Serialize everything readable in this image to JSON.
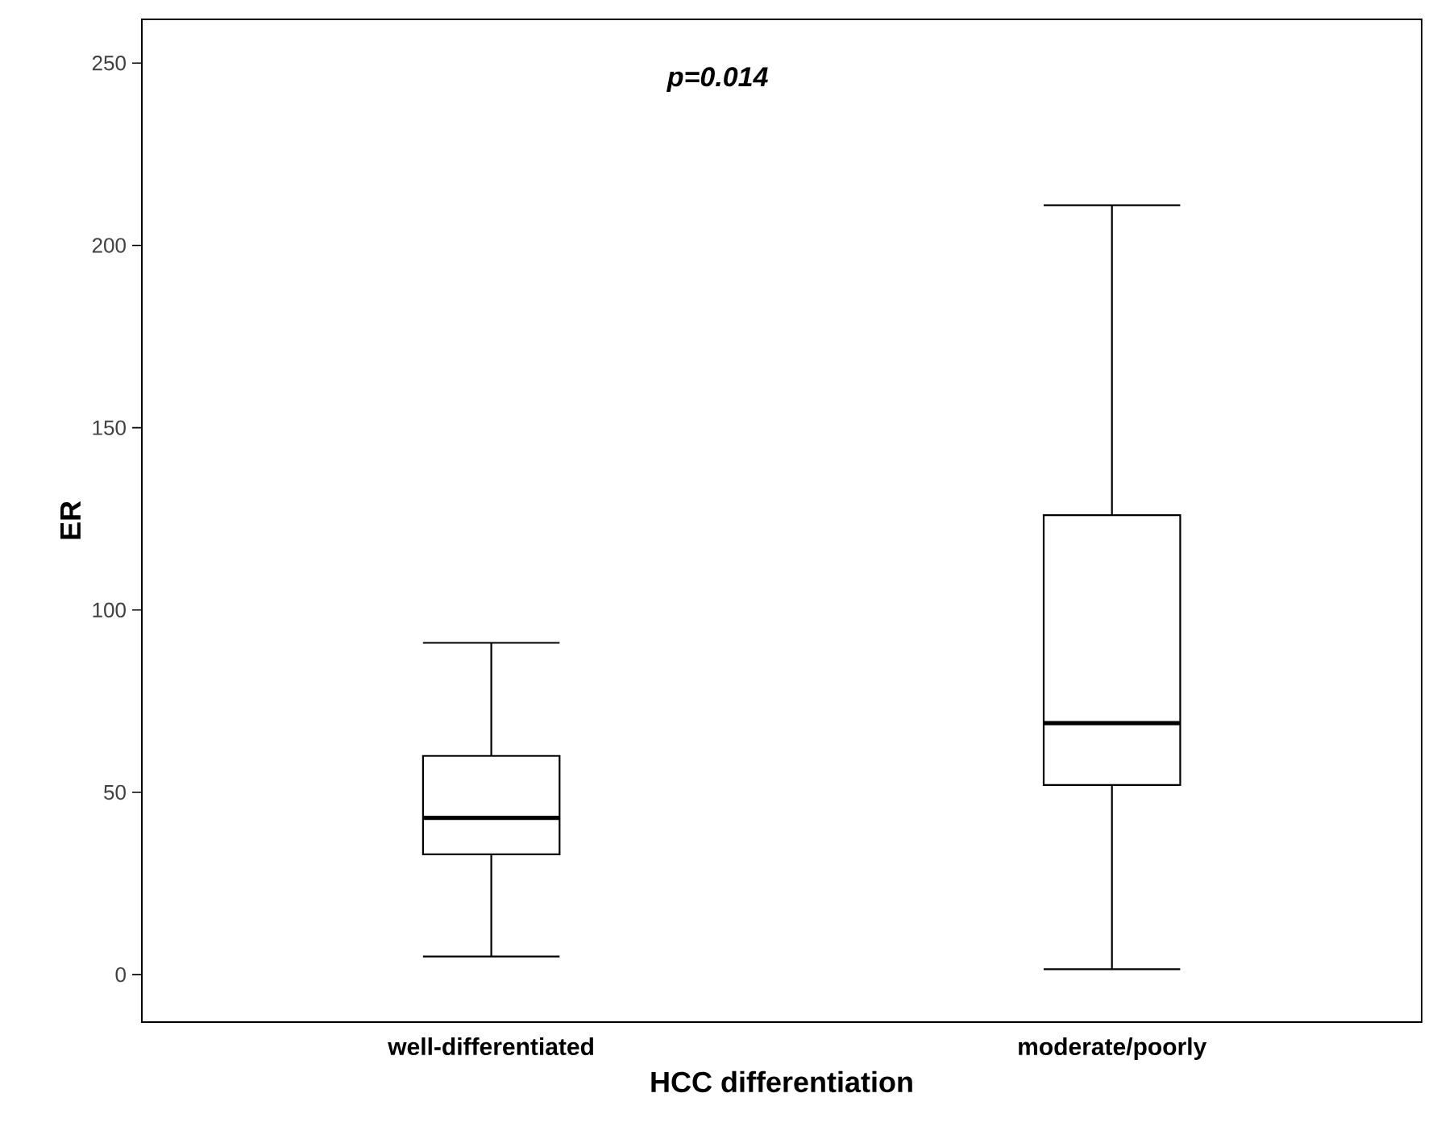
{
  "chart_data": {
    "type": "box",
    "xlabel": "HCC differentiation",
    "ylabel": "ER",
    "categories": [
      "well-differentiated",
      "moderate/poorly"
    ],
    "boxes": [
      {
        "low": 5,
        "q1": 33,
        "median": 43,
        "q3": 60,
        "high": 91
      },
      {
        "low": 1.5,
        "q1": 52,
        "median": 69,
        "q3": 126,
        "high": 211
      }
    ],
    "ylim": [
      -13,
      262
    ],
    "yticks": [
      0,
      50,
      100,
      150,
      200,
      250
    ],
    "grid": false,
    "annotations": [
      "p=0.014"
    ]
  }
}
